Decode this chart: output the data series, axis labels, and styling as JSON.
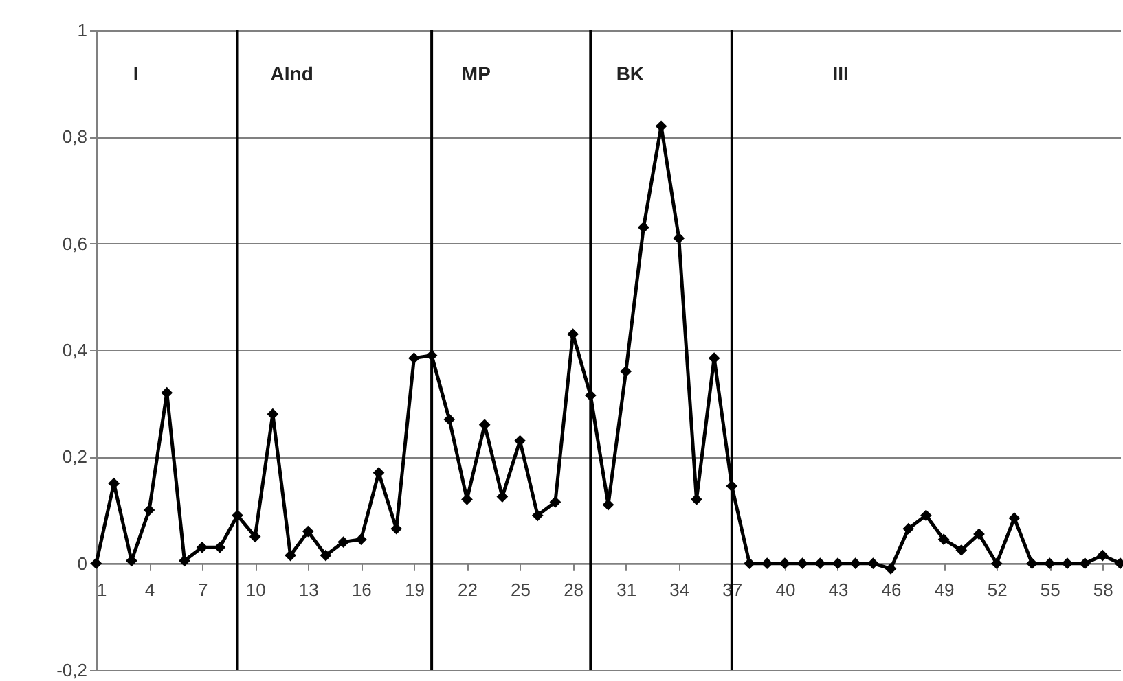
{
  "chart_data": {
    "type": "line",
    "x": [
      1,
      2,
      3,
      4,
      5,
      6,
      7,
      8,
      9,
      10,
      11,
      12,
      13,
      14,
      15,
      16,
      17,
      18,
      19,
      20,
      21,
      22,
      23,
      24,
      25,
      26,
      27,
      28,
      29,
      30,
      31,
      32,
      33,
      34,
      35,
      36,
      37,
      38,
      39,
      40,
      41,
      42,
      43,
      44,
      45,
      46,
      47,
      48,
      49,
      50,
      51,
      52,
      53,
      54,
      55,
      56,
      57,
      58,
      59
    ],
    "series": [
      {
        "color": "#000000",
        "values": [
          0,
          0.15,
          0.005,
          0.1,
          0.32,
          0.005,
          0.03,
          0.03,
          0.09,
          0.05,
          0.28,
          0.015,
          0.06,
          0.015,
          0.04,
          0.045,
          0.17,
          0.065,
          0.385,
          0.39,
          0.27,
          0.12,
          0.26,
          0.125,
          0.23,
          0.09,
          0.115,
          0.43,
          0.315,
          0.11,
          0.36,
          0.63,
          0.82,
          0.61,
          0.12,
          0.385,
          0.145,
          0,
          0,
          0,
          0,
          0,
          0,
          0,
          0,
          -0.01,
          0.065,
          0.09,
          0.045,
          0.025,
          0.055,
          0,
          0.085,
          0,
          0,
          0,
          0,
          0.015,
          0
        ]
      }
    ],
    "xlim": [
      1,
      59
    ],
    "xticks": [
      1,
      4,
      7,
      10,
      13,
      16,
      19,
      22,
      25,
      28,
      31,
      34,
      37,
      40,
      43,
      46,
      49,
      52,
      55,
      58
    ],
    "ylim": [
      -0.2,
      1
    ],
    "yticks": [
      {
        "value": -0.2,
        "label": "-0,2"
      },
      {
        "value": 0,
        "label": "0"
      },
      {
        "value": 0.2,
        "label": "0,2"
      },
      {
        "value": 0.4,
        "label": "0,4"
      },
      {
        "value": 0.6,
        "label": "0,6"
      },
      {
        "value": 0.8,
        "label": "0,8"
      },
      {
        "value": 1,
        "label": "1"
      }
    ],
    "ref_lines": [
      {
        "axis": "x",
        "value": 9,
        "color": "#000000"
      },
      {
        "axis": "x",
        "value": 20,
        "color": "#000000"
      },
      {
        "axis": "x",
        "value": 29,
        "color": "#000000"
      },
      {
        "axis": "x",
        "value": 37,
        "color": "#000000"
      }
    ],
    "annotations": [
      "I",
      "AInd",
      "MP",
      "BK",
      "III"
    ],
    "grid": "y",
    "marker": "diamond",
    "line_style": "solid"
  }
}
